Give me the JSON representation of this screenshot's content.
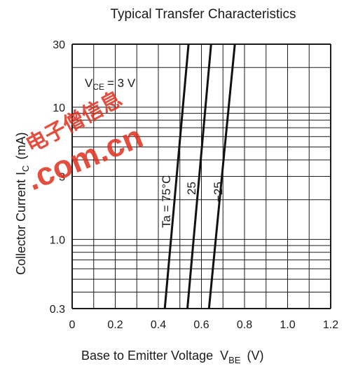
{
  "chart_data": {
    "type": "line",
    "title": "Typical Transfer Characteristics",
    "xlabel": "Base to Emitter Voltage",
    "xlabel_symbol": "V",
    "xlabel_symbol_sub": "BE",
    "xlabel_unit": "(V)",
    "ylabel": "Collector Current",
    "ylabel_symbol": "I",
    "ylabel_symbol_sub": "C",
    "ylabel_unit": "(mA)",
    "xlim": [
      0,
      1.2
    ],
    "ylim": [
      0.3,
      30
    ],
    "yscale": "log",
    "grid": true,
    "x_ticks": [
      "0",
      "0.2",
      "0.4",
      "0.6",
      "0.8",
      "1.0",
      "1.2"
    ],
    "y_ticks": [
      {
        "value": 0.3,
        "label": "0.3"
      },
      {
        "value": 1.0,
        "label": "1.0"
      },
      {
        "value": 3,
        "label": "3"
      },
      {
        "value": 10,
        "label": "10"
      },
      {
        "value": 30,
        "label": "30"
      }
    ],
    "condition": {
      "symbol": "V",
      "sub": "CE",
      "text": "= 3 V"
    },
    "series": [
      {
        "name": "Ta = 75°C",
        "x": [
          0.43,
          0.54
        ],
        "y": [
          0.3,
          30
        ]
      },
      {
        "name": "25",
        "x": [
          0.535,
          0.645
        ],
        "y": [
          0.3,
          30
        ]
      },
      {
        "name": "−25",
        "x": [
          0.635,
          0.755
        ],
        "y": [
          0.3,
          30
        ]
      }
    ]
  },
  "watermark": {
    "line1": "电子僧信息",
    "line2": ".com.cn"
  }
}
